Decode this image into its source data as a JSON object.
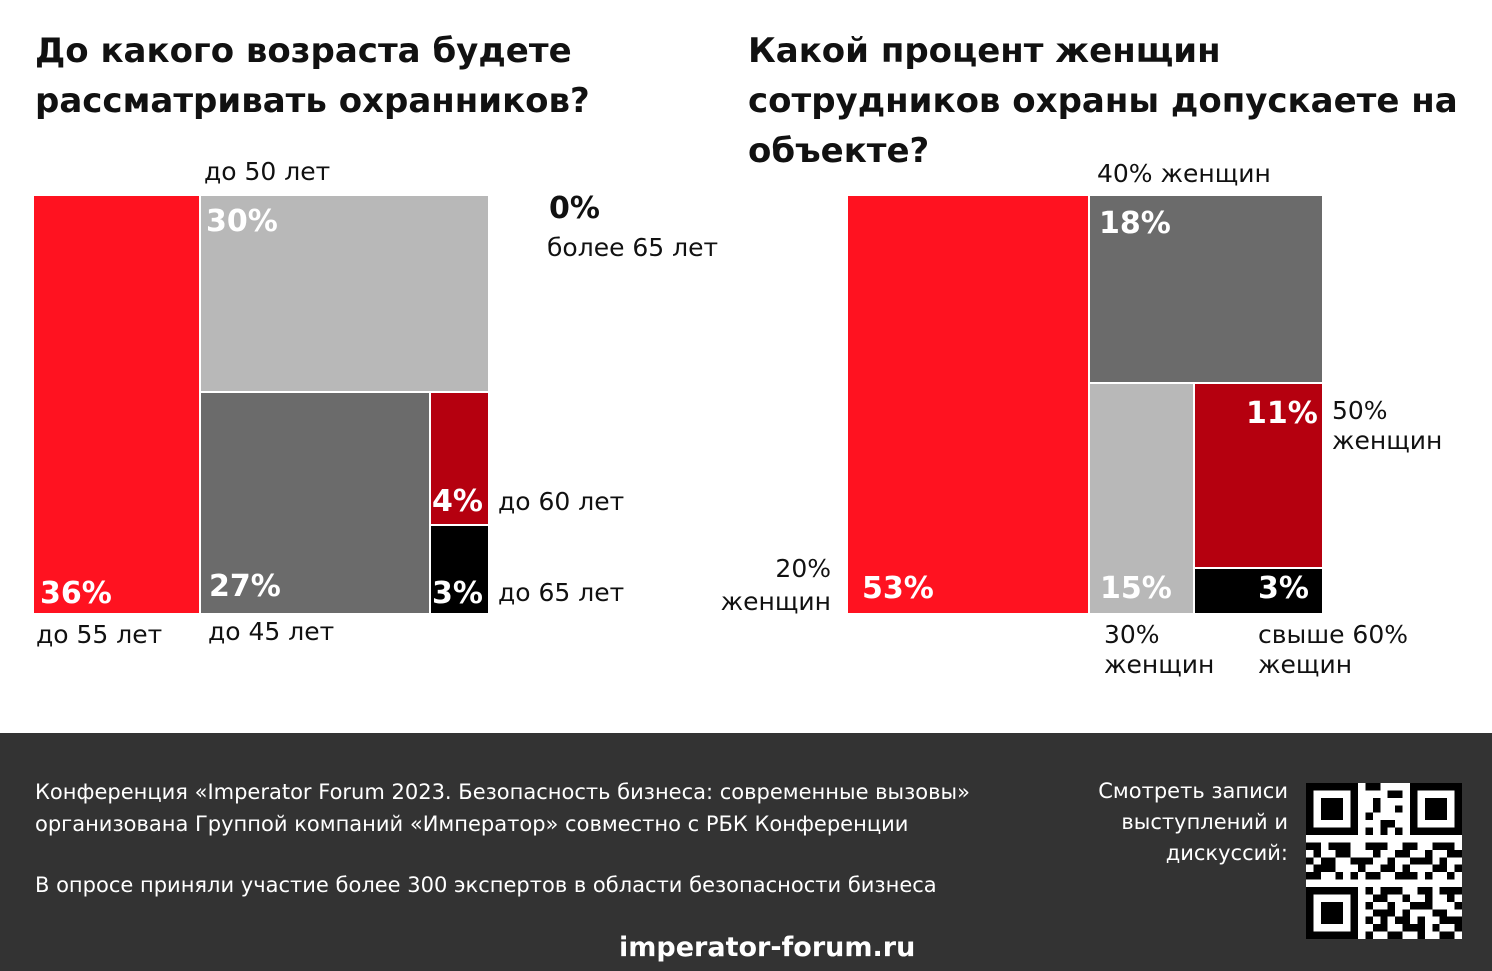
{
  "chart_data": [
    {
      "type": "treemap",
      "title": "До какого возраста будете рассматривать охранников?",
      "categories": [
        "до 55 лет",
        "до 50 лет",
        "до 45 лет",
        "до 60 лет",
        "до 65 лет",
        "более 65 лет"
      ],
      "values": [
        36,
        30,
        27,
        4,
        3,
        0
      ],
      "value_labels": [
        "36%",
        "30%",
        "27%",
        "4%",
        "3%",
        "0%"
      ],
      "colors": [
        "#ff1220",
        "#b8b8b8",
        "#6b6b6b",
        "#b5000f",
        "#000000",
        "#ffffff"
      ]
    },
    {
      "type": "treemap",
      "title": "Какой процент женщин сотрудников охраны допускаете на объекте?",
      "categories": [
        "20% женщин",
        "40% женщин",
        "30% женщин",
        "50% женщин",
        "свыше 60% жещин"
      ],
      "values": [
        53,
        18,
        15,
        11,
        3
      ],
      "value_labels": [
        "53%",
        "18%",
        "15%",
        "11%",
        "3%"
      ],
      "colors": [
        "#ff1220",
        "#6b6b6b",
        "#b8b8b8",
        "#b5000f",
        "#000000"
      ]
    }
  ],
  "left": {
    "title": "До какого возраста будете рассматривать охранников?",
    "zero_value": "0%",
    "zero_label": "более 65 лет",
    "tiles": [
      {
        "pct": "36%",
        "label": "до 55 лет"
      },
      {
        "pct": "30%",
        "label": "до 50 лет"
      },
      {
        "pct": "27%",
        "label": "до 45 лет"
      },
      {
        "pct": "4%",
        "label": "до 60 лет"
      },
      {
        "pct": "3%",
        "label": "до 65 лет"
      }
    ]
  },
  "right": {
    "title": "Какой процент женщин сотрудников охраны допускаете на объекте?",
    "tiles": [
      {
        "pct": "53%",
        "label_l1": "20%",
        "label_l2": "женщин"
      },
      {
        "pct": "18%",
        "label": "40% женщин"
      },
      {
        "pct": "15%",
        "label_l1": "30%",
        "label_l2": "женщин"
      },
      {
        "pct": "11%",
        "label_l1": "50%",
        "label_l2": "женщин"
      },
      {
        "pct": "3%",
        "label_l1": "свыше 60%",
        "label_l2": "жещин"
      }
    ]
  },
  "footer": {
    "line1": "Конференция «Imperator Forum 2023. Безопасность бизнеса: современные вызовы»",
    "line2": "организована Группой компаний «Император» совместно с РБК Конференции",
    "line3": "В опросе приняли участие более 300 экспертов в области безопасности бизнеса",
    "qr_label_1": "Смотреть записи",
    "qr_label_2": "выступлений и",
    "qr_label_3": "дискуссий:",
    "website": "imperator-forum.ru"
  }
}
